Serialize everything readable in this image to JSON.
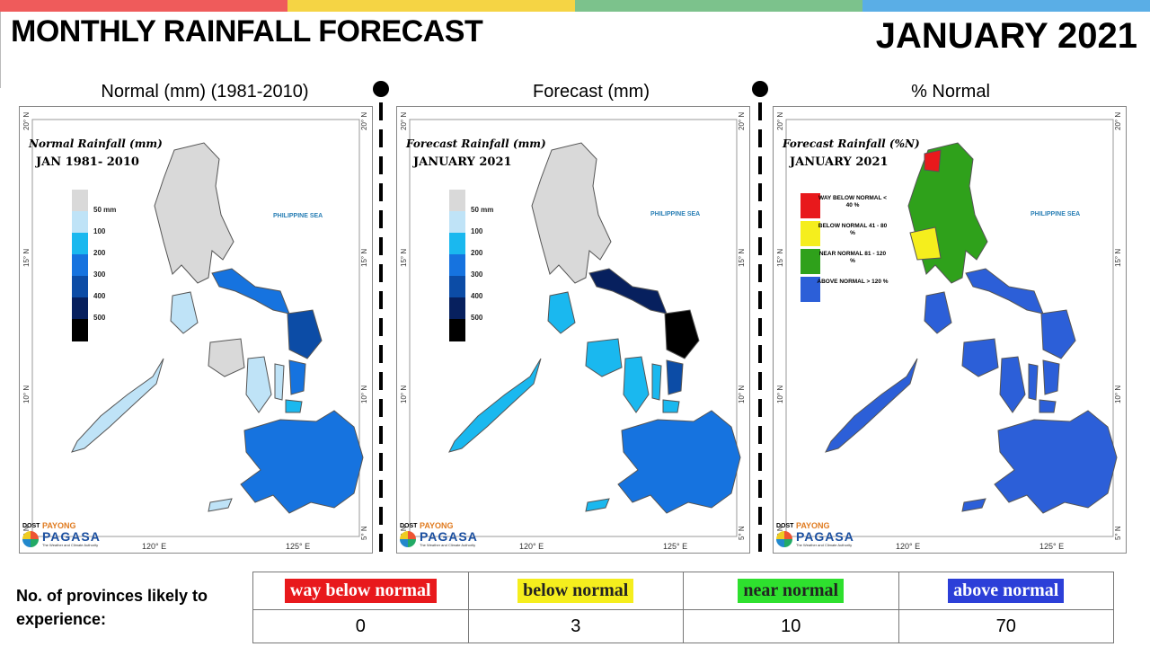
{
  "colors": {
    "topbar": [
      "#ef5b5b",
      "#f5d444",
      "#7cc28c",
      "#5aaee6"
    ],
    "rain_scale": [
      "#d9d9d9",
      "#bfe3f7",
      "#1ab8ef",
      "#1673df",
      "#0c4ca6",
      "#07205e",
      "#000000"
    ],
    "category": {
      "way_below": "#e8191c",
      "below": "#f5ee1d",
      "near": "#2fa11b",
      "above": "#2c5fd8"
    }
  },
  "header": {
    "title": "MONTHLY RAINFALL FORECAST",
    "period": "JANUARY 2021"
  },
  "panels": [
    {
      "heading": "Normal (mm) (1981-2010)",
      "map_title": "Normal Rainfall (mm)",
      "map_subtitle": "JAN 1981- 2010",
      "legend": [
        "50 mm",
        "100",
        "200",
        "300",
        "400",
        "500"
      ]
    },
    {
      "heading": "Forecast (mm)",
      "map_title": "Forecast Rainfall (mm)",
      "map_subtitle": "JANUARY 2021",
      "legend": [
        "50 mm",
        "100",
        "200",
        "300",
        "400",
        "500"
      ]
    },
    {
      "heading": "% Normal",
      "map_title": "Forecast Rainfall (%N)",
      "map_subtitle": "JANUARY 2021",
      "categories": [
        {
          "name": "WAY BELOW NORMAL",
          "range": "< 40 %"
        },
        {
          "name": "BELOW NORMAL",
          "range": "41 - 80 %"
        },
        {
          "name": "NEAR NORMAL",
          "range": "81 - 120 %"
        },
        {
          "name": "ABOVE NORMAL",
          "range": "> 120 %"
        }
      ]
    }
  ],
  "map_labels": {
    "sea": "PHILIPPINE SEA",
    "lat": [
      "20° N",
      "15° N",
      "10° N",
      "5° N"
    ],
    "lon": [
      "120° E",
      "125° E"
    ]
  },
  "logo": {
    "agency_short": "DOST",
    "payong": "PAYONG",
    "pagasa": "PAGASA",
    "tagline": "The Weather and Climate Authority"
  },
  "summary": {
    "label": "No. of provinces likely to experience:",
    "categories": [
      "way below normal",
      "below normal",
      "near normal",
      "above normal"
    ],
    "counts": [
      "0",
      "3",
      "10",
      "70"
    ]
  }
}
